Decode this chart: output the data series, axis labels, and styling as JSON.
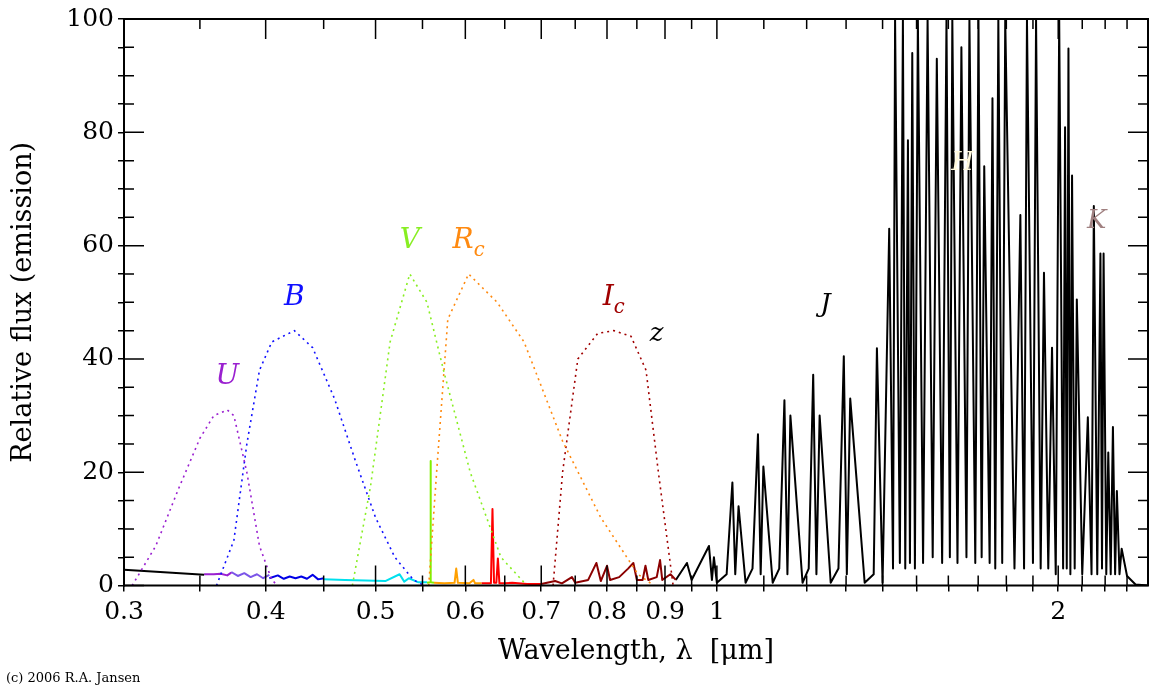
{
  "chart_data": {
    "type": "line",
    "xlabel": "Wavelength, λ  [μm]",
    "ylabel": "Relative flux (emission)",
    "log": "x",
    "grid": false,
    "legend": false,
    "marker": "none",
    "xlim": [
      0.3,
      2.4
    ],
    "ylim": [
      0,
      100
    ],
    "xticks": [
      0.3,
      {
        "value": 0.35,
        "label": null
      },
      0.4,
      {
        "value": 0.45,
        "label": null
      },
      0.5,
      {
        "value": 0.55,
        "label": null
      },
      0.6,
      {
        "value": 0.65,
        "label": null
      },
      0.7,
      {
        "value": 0.75,
        "label": null
      },
      0.8,
      {
        "value": 0.85,
        "label": null
      },
      0.9,
      {
        "value": 0.95,
        "label": null
      },
      1,
      {
        "value": 1.1,
        "label": null
      },
      {
        "value": 1.2,
        "label": null
      },
      {
        "value": 1.3,
        "label": null
      },
      {
        "value": 1.4,
        "label": null
      },
      {
        "value": 1.5,
        "label": null
      },
      {
        "value": 1.6,
        "label": null
      },
      {
        "value": 1.7,
        "label": null
      },
      {
        "value": 1.8,
        "label": null
      },
      {
        "value": 1.9,
        "label": null
      },
      2,
      {
        "value": 2.1,
        "label": null
      },
      {
        "value": 2.2,
        "label": null
      },
      {
        "value": 2.3,
        "label": null
      }
    ],
    "yticks": [
      0,
      {
        "value": 5,
        "label": null
      },
      {
        "value": 10,
        "label": null
      },
      {
        "value": 15,
        "label": null
      },
      20,
      {
        "value": 25,
        "label": null
      },
      {
        "value": 30,
        "label": null
      },
      {
        "value": 35,
        "label": null
      },
      40,
      {
        "value": 45,
        "label": null
      },
      {
        "value": 50,
        "label": null
      },
      {
        "value": 55,
        "label": null
      },
      60,
      {
        "value": 65,
        "label": null
      },
      {
        "value": 70,
        "label": null
      },
      {
        "value": 75,
        "label": null
      },
      80,
      {
        "value": 85,
        "label": null
      },
      {
        "value": 90,
        "label": null
      },
      {
        "value": 95,
        "label": null
      },
      100
    ],
    "series": [
      {
        "name": "U",
        "color": "#9a20d0",
        "line_style": "dotted",
        "x": [
          0.305,
          0.32,
          0.335,
          0.35,
          0.36,
          0.37,
          0.375,
          0.385,
          0.395,
          0.405,
          0.41
        ],
        "values": [
          0,
          7,
          17,
          26,
          30,
          31,
          30,
          20,
          7,
          1,
          0
        ]
      },
      {
        "name": "B",
        "color": "#1010ff",
        "line_style": "dotted",
        "x": [
          0.362,
          0.375,
          0.385,
          0.395,
          0.405,
          0.424,
          0.44,
          0.46,
          0.48,
          0.5,
          0.52,
          0.54,
          0.552
        ],
        "values": [
          0,
          8,
          25,
          38,
          43,
          45,
          42,
          33,
          22,
          12,
          5,
          1,
          0
        ]
      },
      {
        "name": "V",
        "color": "#88ee22",
        "line_style": "dotted",
        "x": [
          0.477,
          0.495,
          0.515,
          0.536,
          0.555,
          0.574,
          0.606,
          0.645,
          0.68
        ],
        "values": [
          0,
          17.6,
          43,
          55,
          50,
          38,
          20,
          5,
          0
        ]
      },
      {
        "name": "R$_{c}$",
        "color": "#ff8a10",
        "line_style": "dotted",
        "x": [
          0.557,
          0.566,
          0.579,
          0.604,
          0.64,
          0.676,
          0.731,
          0.79,
          0.852,
          0.88
        ],
        "values": [
          0,
          20,
          47,
          55,
          50,
          43,
          25.5,
          12,
          2,
          0
        ]
      },
      {
        "name": "I$_{c}$",
        "color": "#a00000",
        "line_style": "dotted",
        "x": [
          0.717,
          0.731,
          0.754,
          0.785,
          0.811,
          0.84,
          0.866,
          0.888,
          0.915
        ],
        "values": [
          0,
          20,
          40,
          44.5,
          45,
          44,
          38,
          20,
          0
        ]
      },
      {
        "color": "#000000",
        "line_style": "solid",
        "x": [
          0.3,
          0.353
        ],
        "values": [
          2.8,
          1.9
        ]
      },
      {
        "color": "#9a20d0",
        "line_style": "solid",
        "x": [
          0.353,
          0.36,
          0.365,
          0.37,
          0.373
        ],
        "values": [
          2,
          2,
          2.1,
          1.8,
          2.3
        ]
      },
      {
        "color": "#7b55e8",
        "line_style": "solid",
        "x": [
          0.373,
          0.378,
          0.383,
          0.388,
          0.393,
          0.398,
          0.403
        ],
        "values": [
          2.4,
          1.7,
          2.2,
          1.5,
          2,
          1.3,
          1.9
        ]
      },
      {
        "color": "#0000e6",
        "line_style": "solid",
        "x": [
          0.403,
          0.41,
          0.415,
          0.42,
          0.425,
          0.43,
          0.435,
          0.44,
          0.445,
          0.45
        ],
        "values": [
          1.3,
          1.8,
          1.2,
          1.6,
          1.3,
          1.6,
          1.2,
          1.9,
          1.1,
          1.3
        ]
      },
      {
        "color": "#00e0ee",
        "line_style": "solid",
        "x": [
          0.45,
          0.47,
          0.49,
          0.51,
          0.525,
          0.53,
          0.535,
          0.545,
          0.555
        ],
        "values": [
          1.1,
          1,
          0.9,
          0.8,
          2,
          0.7,
          1.3,
          0.6,
          0.6
        ]
      },
      {
        "color": "#80f000",
        "line_style": "solid",
        "x": [
          0.555,
          0.5585,
          0.559,
          0.5595,
          0.563
        ],
        "values": [
          0.5,
          0.6,
          22,
          0.6,
          0.5
        ]
      },
      {
        "color": "#ffa000",
        "line_style": "solid",
        "x": [
          0.563,
          0.575,
          0.587,
          0.589,
          0.591,
          0.605,
          0.61,
          0.612,
          0.62
        ],
        "values": [
          0.5,
          0.4,
          0.5,
          3,
          0.5,
          0.4,
          1,
          0.4,
          0.4
        ]
      },
      {
        "color": "#ff0000",
        "line_style": "solid",
        "x": [
          0.62,
          0.632,
          0.634,
          0.636,
          0.639,
          0.641,
          0.643,
          0.65,
          0.66,
          0.68,
          0.7
        ],
        "values": [
          0.4,
          0.4,
          13.5,
          0.5,
          0.5,
          4.8,
          0.4,
          0.4,
          0.5,
          0.3,
          0.3
        ]
      },
      {
        "color": "#8b0000",
        "line_style": "solid",
        "x": [
          0.7,
          0.72,
          0.73,
          0.745,
          0.75,
          0.77,
          0.783,
          0.79,
          0.8,
          0.805,
          0.82,
          0.835,
          0.844,
          0.85,
          0.86,
          0.865,
          0.87,
          0.885,
          0.891,
          0.895,
          0.91,
          0.92
        ],
        "values": [
          0.3,
          0.8,
          0.4,
          1.5,
          0.5,
          1,
          4,
          0.8,
          3.5,
          1,
          1.5,
          3,
          4,
          1,
          1,
          3.5,
          1,
          1.5,
          4.5,
          1,
          2,
          1
        ]
      },
      {
        "color": "#000000",
        "line_style": "solid",
        "x": [
          0.92,
          0.941,
          0.95,
          0.984,
          0.99,
          0.994,
          1.0,
          1.02,
          1.032,
          1.038,
          1.045,
          1.06,
          1.075,
          1.087,
          1.093,
          1.099,
          1.12,
          1.135,
          1.147,
          1.154,
          1.161,
          1.19,
          1.205,
          1.216,
          1.224,
          1.232,
          1.26,
          1.28,
          1.294,
          1.302,
          1.311,
          1.35,
          1.375,
          1.384,
          1.4,
          1.419,
          1.43,
          1.436,
          1.45,
          1.459,
          1.466,
          1.474,
          1.48,
          1.487,
          1.495,
          1.504,
          1.52,
          1.534,
          1.55,
          1.563,
          1.58,
          1.594,
          1.605,
          1.613,
          1.63,
          1.643,
          1.66,
          1.67,
          1.69,
          1.701,
          1.712,
          1.721,
          1.74,
          1.75,
          1.76,
          1.771,
          1.785,
          1.796,
          1.83,
          1.852,
          1.866,
          1.877,
          1.9,
          1.912,
          1.93,
          1.943,
          1.96,
          1.975,
          1.99,
          2.004,
          2.02,
          2.028,
          2.035,
          2.042,
          2.05,
          2.057,
          2.068,
          2.077,
          2.1,
          2.124,
          2.14,
          2.15,
          2.165,
          2.179,
          2.186,
          2.193,
          2.205,
          2.214,
          2.225,
          2.235,
          2.245,
          2.253,
          2.265,
          2.275,
          2.3,
          2.34,
          2.4
        ],
        "values": [
          1,
          4,
          1,
          7,
          1,
          5,
          0.5,
          2,
          18.2,
          2,
          14,
          0.5,
          3,
          26.7,
          2,
          21,
          0.5,
          3,
          32.7,
          2,
          30,
          0.5,
          3,
          37.2,
          2,
          30,
          0.5,
          3,
          40.5,
          2,
          33,
          0.5,
          2,
          41.9,
          0.5,
          63,
          3,
          100,
          4,
          100,
          3,
          78.6,
          4,
          94,
          3,
          100,
          4,
          100,
          5,
          93,
          4,
          100,
          5,
          100,
          4,
          95,
          5,
          100,
          4,
          100,
          5,
          74,
          4,
          86,
          3,
          100,
          4,
          100,
          3,
          65.4,
          3,
          100,
          4,
          100,
          3,
          55.2,
          3,
          42,
          2,
          100,
          3,
          80.9,
          3,
          94.8,
          2,
          72.4,
          3,
          50.5,
          2,
          29.7,
          2,
          67,
          2,
          58.6,
          3,
          58.6,
          2,
          23.5,
          2,
          28,
          2,
          16.7,
          2,
          6.5,
          1.7,
          0.2,
          0
        ]
      }
    ],
    "annotations": [
      "z",
      "J",
      "H",
      "K",
      "(c) 2006 R.A. Jansen"
    ]
  }
}
